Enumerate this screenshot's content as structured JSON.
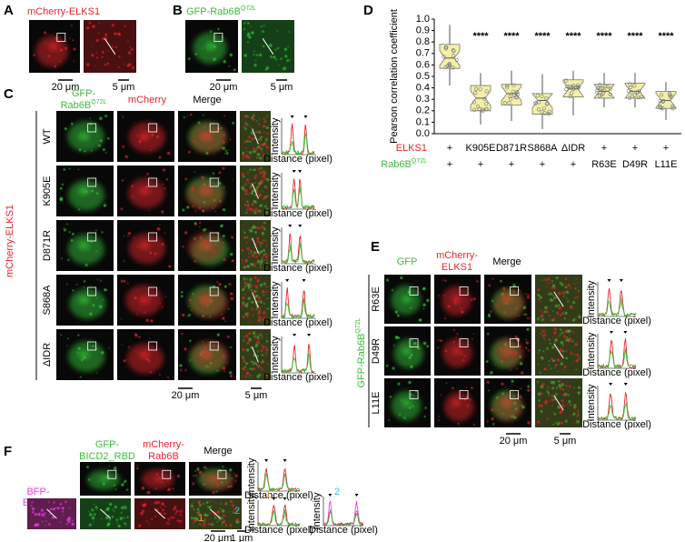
{
  "panels": {
    "A": {
      "label": "A",
      "title": "mCherry-ELKS1",
      "scale_bars": [
        "20 μm",
        "5 μm"
      ]
    },
    "B": {
      "label": "B",
      "title": {
        "text": "GFP-Rab6B",
        "sup": "Q72L"
      },
      "scale_bars": [
        "20 μm",
        "5 μm"
      ]
    },
    "C": {
      "label": "C",
      "columns": [
        [
          "GFP-",
          {
            "text": "Rab6B",
            "sup": "Q72L"
          }
        ],
        [
          "mCherry"
        ],
        [
          "Merge"
        ]
      ],
      "rows": [
        "WT",
        "K905E",
        "D871R",
        "S868A",
        "ΔIDR"
      ],
      "side_label": "mCherry-ELKS1",
      "plot_y_label": "Intensity",
      "plot_x_label": "Distance (pixel)",
      "scale_bars": [
        "20 μm",
        "5 μm"
      ]
    },
    "E": {
      "label": "E",
      "columns": [
        [
          "GFP"
        ],
        [
          "mCherry-",
          "ELKS1"
        ],
        [
          "Merge"
        ]
      ],
      "rows": [
        "R63E",
        "D49R",
        "L11E"
      ],
      "side_label": {
        "text": "GFP-Rab6B",
        "sup": "Q72L"
      },
      "plot_y_label": "Intensity",
      "plot_x_label": "Distance (pixel)",
      "scale_bars": [
        "20 μm",
        "5 μm"
      ]
    },
    "F": {
      "label": "F",
      "columns": [
        [
          "GFP-",
          "BICD2_RBD"
        ],
        [
          "mCherry-",
          "Rab6B"
        ],
        [
          "Merge"
        ]
      ],
      "side_label": [
        "BFP-",
        "ELKS1"
      ],
      "roi_labels": [
        "1",
        "2"
      ],
      "plot_y_label": "Intensity",
      "plot_x_label": "Distance (pixel)",
      "scale_bars": [
        "20 μm",
        "1 μm"
      ]
    }
  },
  "chart_data": {
    "type": "box",
    "panel_label": "D",
    "y_label": "Pearson correlation coefficient",
    "row_labels": [
      "ELKS1",
      {
        "text": "Rab6B",
        "sup": "Q72L"
      }
    ],
    "categories": [
      [
        "+",
        "+"
      ],
      [
        "K905E",
        "+"
      ],
      [
        "D871R",
        "+"
      ],
      [
        "S868A",
        "+"
      ],
      [
        "ΔIDR",
        "+"
      ],
      [
        "+",
        "R63E"
      ],
      [
        "+",
        "D49R"
      ],
      [
        "+",
        "L11E"
      ]
    ],
    "significance": [
      null,
      "****",
      "****",
      "****",
      "****",
      "****",
      "****",
      "****"
    ],
    "boxes": [
      {
        "min": 0.42,
        "q1": 0.57,
        "median": 0.66,
        "q3": 0.78,
        "max": 0.95
      },
      {
        "min": 0.08,
        "q1": 0.2,
        "median": 0.31,
        "q3": 0.42,
        "max": 0.53
      },
      {
        "min": 0.11,
        "q1": 0.25,
        "median": 0.35,
        "q3": 0.43,
        "max": 0.55
      },
      {
        "min": 0.04,
        "q1": 0.17,
        "median": 0.29,
        "q3": 0.35,
        "max": 0.52
      },
      {
        "min": 0.16,
        "q1": 0.32,
        "median": 0.39,
        "q3": 0.47,
        "max": 0.55
      },
      {
        "min": 0.23,
        "q1": 0.31,
        "median": 0.37,
        "q3": 0.43,
        "max": 0.53
      },
      {
        "min": 0.23,
        "q1": 0.31,
        "median": 0.37,
        "q3": 0.44,
        "max": 0.53
      },
      {
        "min": 0.12,
        "q1": 0.22,
        "median": 0.29,
        "q3": 0.37,
        "max": 0.45
      }
    ],
    "color": "#f4efa8",
    "ylim": [
      0,
      1
    ],
    "yticks": [
      {
        "value": 0,
        "label": "0.0"
      },
      {
        "value": 0.1,
        "label": "0.1"
      },
      {
        "value": 0.2,
        "label": "0.2"
      },
      {
        "value": 0.3,
        "label": "0.3"
      },
      {
        "value": 0.4,
        "label": "0.4"
      },
      {
        "value": 0.5,
        "label": "0.5"
      },
      {
        "value": 0.6,
        "label": "0.6"
      },
      {
        "value": 0.7,
        "label": "0.7"
      },
      {
        "value": 0.8,
        "label": "0.8"
      },
      {
        "value": 0.9,
        "label": "0.9"
      },
      {
        "value": 1,
        "label": "1.0"
      }
    ]
  }
}
